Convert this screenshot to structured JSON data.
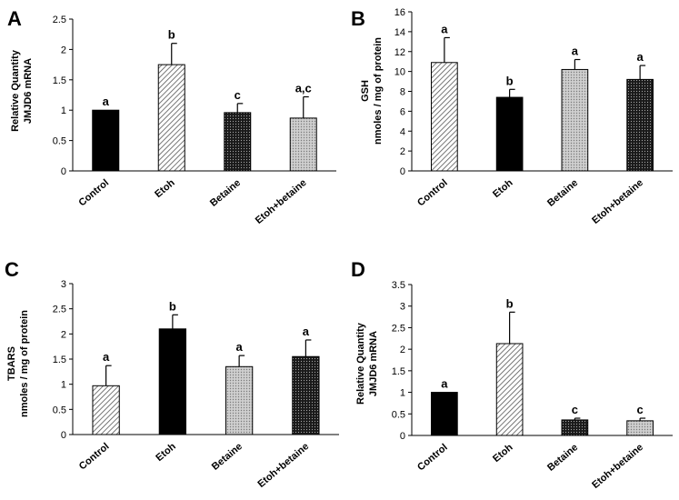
{
  "chart_data": [
    {
      "panel_label": "A",
      "type": "bar",
      "title": "",
      "xlabel": "",
      "ylabel": [
        "Relative Quantity",
        "JMJD6 mRNA"
      ],
      "ylim": [
        0,
        2.5
      ],
      "yticks": [
        "0",
        "0.5",
        "1",
        "1.5",
        "2",
        "2.5"
      ],
      "grid": false,
      "categories": [
        "Control",
        "Etoh",
        "Betaine",
        "Etoh+betaine"
      ],
      "values": [
        1.0,
        1.75,
        0.96,
        0.87
      ],
      "errors": [
        0.0,
        0.35,
        0.15,
        0.35
      ],
      "significance": [
        "a",
        "b",
        "c",
        "a,c"
      ],
      "patterns": [
        "solid-black",
        "diag-light",
        "dots-dark",
        "dots-light"
      ]
    },
    {
      "panel_label": "B",
      "type": "bar",
      "title": "",
      "xlabel": "",
      "ylabel": [
        "GSH",
        "nmoles /  mg of protein"
      ],
      "ylim": [
        0,
        16
      ],
      "yticks": [
        "0",
        "2",
        "4",
        "6",
        "8",
        "10",
        "12",
        "14",
        "16"
      ],
      "grid": false,
      "categories": [
        "Control",
        "Etoh",
        "Betaine",
        "Etoh+betaine"
      ],
      "values": [
        10.9,
        7.4,
        10.2,
        9.2
      ],
      "errors": [
        2.5,
        0.8,
        1.0,
        1.4
      ],
      "significance": [
        "a",
        "b",
        "a",
        "a"
      ],
      "patterns": [
        "diag-light",
        "solid-black",
        "dots-light",
        "dots-dark"
      ]
    },
    {
      "panel_label": "C",
      "type": "bar",
      "title": "",
      "xlabel": "",
      "ylabel": [
        "TBARS",
        "nmoles /  mg of protein"
      ],
      "ylim": [
        0,
        3
      ],
      "yticks": [
        "0",
        "0.5",
        "1",
        "1.5",
        "2",
        "2.5",
        "3"
      ],
      "grid": false,
      "categories": [
        "Control",
        "Etoh",
        "Betaine",
        "Etoh+betaine"
      ],
      "values": [
        0.97,
        2.1,
        1.35,
        1.55
      ],
      "errors": [
        0.4,
        0.28,
        0.22,
        0.33
      ],
      "significance": [
        "a",
        "b",
        "a",
        "a"
      ],
      "patterns": [
        "diag-light",
        "solid-black",
        "dots-light",
        "dots-dark"
      ]
    },
    {
      "panel_label": "D",
      "type": "bar",
      "title": "",
      "xlabel": "",
      "ylabel": [
        "Relative Quantity",
        "JMJD6 mRNA"
      ],
      "ylim": [
        0,
        3.5
      ],
      "yticks": [
        "0",
        "0.5",
        "1",
        "1.5",
        "2",
        "2.5",
        "3",
        "3.5"
      ],
      "grid": false,
      "categories": [
        "Control",
        "Etoh",
        "Betaine",
        "Etoh+betaine"
      ],
      "values": [
        1.0,
        2.13,
        0.36,
        0.34
      ],
      "errors": [
        0.0,
        0.73,
        0.04,
        0.06
      ],
      "significance": [
        "a",
        "b",
        "c",
        "c"
      ],
      "patterns": [
        "solid-black",
        "diag-light",
        "dots-dark",
        "dots-light"
      ]
    }
  ]
}
